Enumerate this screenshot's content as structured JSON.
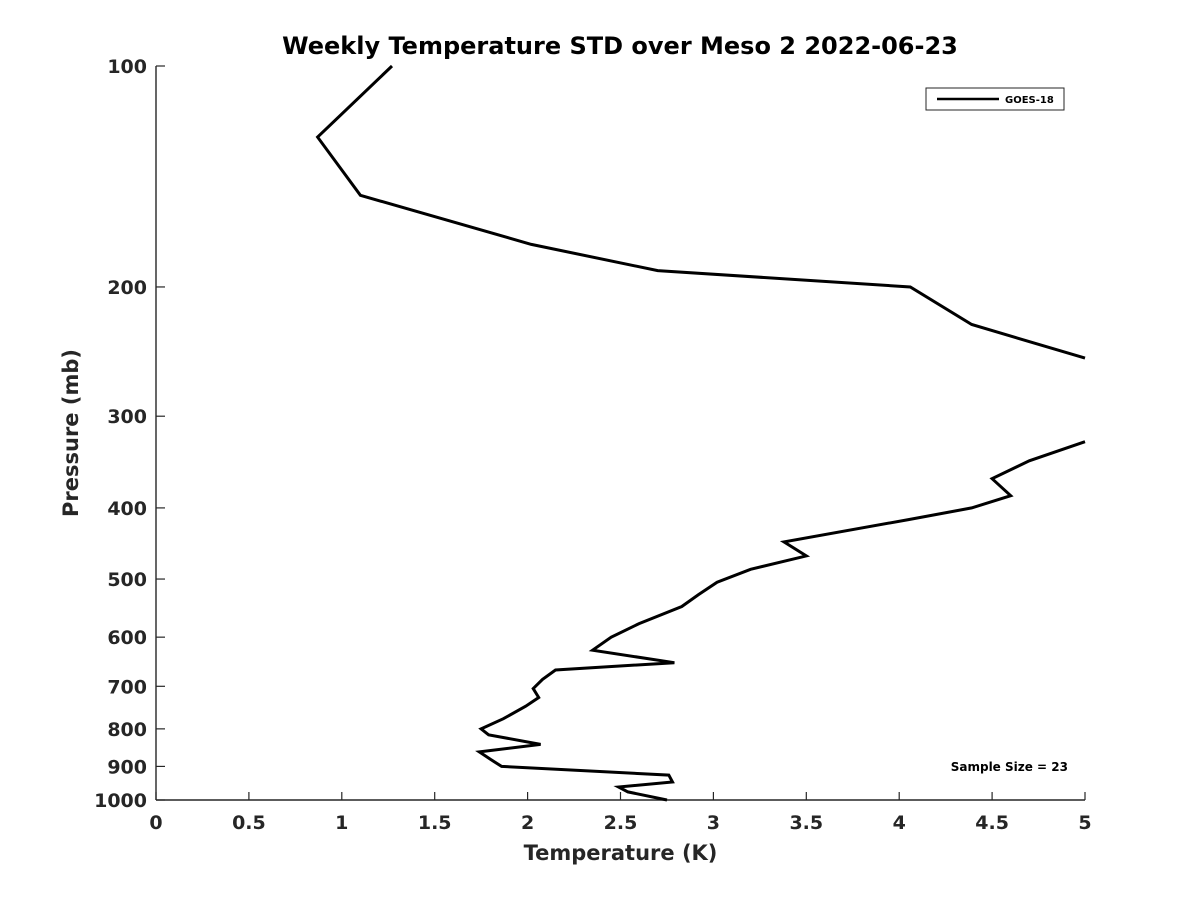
{
  "chart_data": {
    "type": "line",
    "title": "Weekly Temperature STD over Meso 2 2022-06-23",
    "xlabel": "Temperature (K)",
    "ylabel": "Pressure (mb)",
    "xlim": [
      0,
      5
    ],
    "ylim": [
      100,
      1000
    ],
    "y_scale": "log",
    "y_reversed": true,
    "x_ticks": [
      {
        "value": 0,
        "label": "0"
      },
      {
        "value": 0.5,
        "label": "0.5"
      },
      {
        "value": 1,
        "label": "1"
      },
      {
        "value": 1.5,
        "label": "1.5"
      },
      {
        "value": 2,
        "label": "2"
      },
      {
        "value": 2.5,
        "label": "2.5"
      },
      {
        "value": 3,
        "label": "3"
      },
      {
        "value": 3.5,
        "label": "3.5"
      },
      {
        "value": 4,
        "label": "4"
      },
      {
        "value": 4.5,
        "label": "4.5"
      },
      {
        "value": 5,
        "label": "5"
      }
    ],
    "y_ticks": [
      {
        "value": 100,
        "label": "100"
      },
      {
        "value": 200,
        "label": "200"
      },
      {
        "value": 300,
        "label": "300"
      },
      {
        "value": 400,
        "label": "400"
      },
      {
        "value": 500,
        "label": "500"
      },
      {
        "value": 600,
        "label": "600"
      },
      {
        "value": 700,
        "label": "700"
      },
      {
        "value": 800,
        "label": "800"
      },
      {
        "value": 900,
        "label": "900"
      },
      {
        "value": 1000,
        "label": "1000"
      }
    ],
    "grid": false,
    "legend_position": "top-right",
    "annotation": "Sample Size = 23",
    "series": [
      {
        "name": "GOES-18",
        "color": "#000000",
        "segments": [
          [
            {
              "x": 1.27,
              "y": 100
            },
            {
              "x": 0.87,
              "y": 125
            },
            {
              "x": 1.1,
              "y": 150
            },
            {
              "x": 2.02,
              "y": 175
            },
            {
              "x": 2.7,
              "y": 190
            },
            {
              "x": 4.06,
              "y": 200
            },
            {
              "x": 4.39,
              "y": 225
            },
            {
              "x": 5.0,
              "y": 250
            }
          ],
          [
            {
              "x": 5.0,
              "y": 325
            },
            {
              "x": 4.7,
              "y": 345
            },
            {
              "x": 4.5,
              "y": 365
            },
            {
              "x": 4.6,
              "y": 385
            },
            {
              "x": 4.39,
              "y": 400
            },
            {
              "x": 4.05,
              "y": 415
            },
            {
              "x": 3.38,
              "y": 445
            },
            {
              "x": 3.5,
              "y": 465
            },
            {
              "x": 3.2,
              "y": 485
            },
            {
              "x": 3.02,
              "y": 505
            },
            {
              "x": 2.92,
              "y": 525
            },
            {
              "x": 2.83,
              "y": 545
            },
            {
              "x": 2.6,
              "y": 575
            },
            {
              "x": 2.45,
              "y": 600
            },
            {
              "x": 2.35,
              "y": 625
            },
            {
              "x": 2.79,
              "y": 650
            },
            {
              "x": 2.15,
              "y": 665
            },
            {
              "x": 2.08,
              "y": 685
            },
            {
              "x": 2.03,
              "y": 705
            },
            {
              "x": 2.06,
              "y": 725
            },
            {
              "x": 1.99,
              "y": 745
            },
            {
              "x": 1.87,
              "y": 775
            },
            {
              "x": 1.75,
              "y": 800
            },
            {
              "x": 1.79,
              "y": 815
            },
            {
              "x": 2.07,
              "y": 840
            },
            {
              "x": 1.74,
              "y": 860
            },
            {
              "x": 1.8,
              "y": 880
            },
            {
              "x": 1.86,
              "y": 900
            },
            {
              "x": 2.76,
              "y": 925
            },
            {
              "x": 2.78,
              "y": 945
            },
            {
              "x": 2.49,
              "y": 960
            },
            {
              "x": 2.54,
              "y": 975
            },
            {
              "x": 2.75,
              "y": 1000
            }
          ]
        ]
      }
    ]
  }
}
